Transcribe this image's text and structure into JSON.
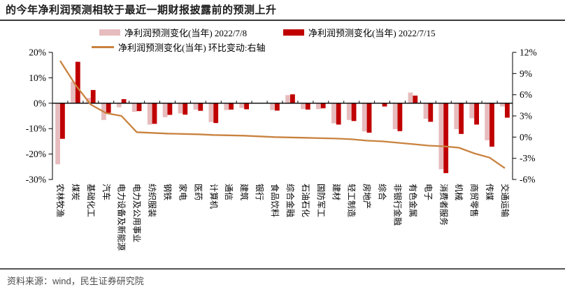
{
  "title": "的今年净利润预测相较于最近一期财报披露前的预测上升",
  "legend": {
    "items": [
      {
        "label": "净利润预测变化(当年) 2022/7/8",
        "type": "bar",
        "color_key": "bar_prev"
      },
      {
        "label": "净利润预测变化(当年) 2022/7/15",
        "type": "bar",
        "color_key": "bar_curr"
      },
      {
        "label": "净利润预测变化(当年) 环比变动:右轴",
        "type": "line",
        "color_key": "line"
      }
    ]
  },
  "source": {
    "text": "资料来源：wind，民生证券研究院"
  },
  "colors": {
    "bar_prev": "#e7bcbe",
    "bar_curr": "#c00000",
    "line": "#c9823f",
    "axis": "#000000",
    "title_rule": "#3a3a3a",
    "source_text": "#4a4a4a"
  },
  "chart_data": {
    "type": "bar",
    "subtype": "clustered bars with overlaid line on secondary axis",
    "categories": [
      "农林牧渔",
      "煤炭",
      "基础化工",
      "汽车",
      "电力设备及新能源",
      "电力及公用事业",
      "纺织服装",
      "钢铁",
      "家电",
      "医药",
      "计算机",
      "通信",
      "建筑",
      "银行",
      "食品饮料",
      "综合金融",
      "石油石化",
      "国防军工",
      "建材",
      "轻工制造",
      "房地产",
      "综合",
      "非银行金融",
      "有色金属",
      "电子",
      "消费者服务",
      "机械",
      "商贸零售",
      "传媒",
      "交通运输"
    ],
    "series": [
      {
        "name": "净利润预测变化(当年) 2022/7/8",
        "type": "bar",
        "axis": "left",
        "values": [
          -24.0,
          8.5,
          2.1,
          -6.6,
          -1.6,
          -3.4,
          -8.4,
          -5.5,
          -4.0,
          -2.5,
          -7.4,
          -2.7,
          -1.9,
          0.0,
          -2.7,
          3.2,
          -2.3,
          -2.3,
          -7.9,
          -6.6,
          -11.1,
          0.0,
          -10.2,
          4.2,
          -6.1,
          -26.0,
          -10.2,
          -5.9,
          -14.6,
          -1.3
        ]
      },
      {
        "name": "净利润预测变化(当年) 2022/7/15",
        "type": "bar",
        "axis": "left",
        "values": [
          -14.0,
          16.3,
          5.2,
          -3.8,
          1.6,
          -3.1,
          -8.1,
          -4.6,
          -4.5,
          -3.0,
          -7.8,
          -2.5,
          -2.4,
          0.0,
          -2.9,
          3.5,
          -2.5,
          -2.0,
          -8.4,
          -7.0,
          -11.6,
          -1.3,
          -11.0,
          3.0,
          -7.3,
          -27.5,
          -12.1,
          -8.4,
          -17.1,
          -5.7
        ]
      },
      {
        "name": "净利润预测变化(当年) 环比变动:右轴",
        "type": "line",
        "axis": "right",
        "values": [
          10.8,
          7.4,
          4.6,
          3.4,
          3.0,
          0.7,
          0.6,
          0.5,
          0.45,
          0.4,
          0.3,
          0.25,
          0.2,
          0.1,
          0.0,
          -0.05,
          -0.1,
          -0.15,
          -0.2,
          -0.3,
          -0.5,
          -0.6,
          -0.8,
          -1.0,
          -1.2,
          -1.3,
          -1.5,
          -2.3,
          -2.9,
          -4.4
        ]
      }
    ],
    "left_axis": {
      "ticks": [
        "20%",
        "10%",
        "0%",
        "-10%",
        "-20%",
        "-30%"
      ],
      "values": [
        20,
        10,
        0,
        -10,
        -20,
        -30
      ],
      "min": -30,
      "max": 20
    },
    "right_axis": {
      "ticks": [
        "12%",
        "9%",
        "6%",
        "3%",
        "0%",
        "-3%",
        "-6%"
      ],
      "values": [
        12,
        9,
        6,
        3,
        0,
        -3,
        -6
      ],
      "min": -6,
      "max": 12
    },
    "grid": false,
    "legend_position": "top"
  }
}
